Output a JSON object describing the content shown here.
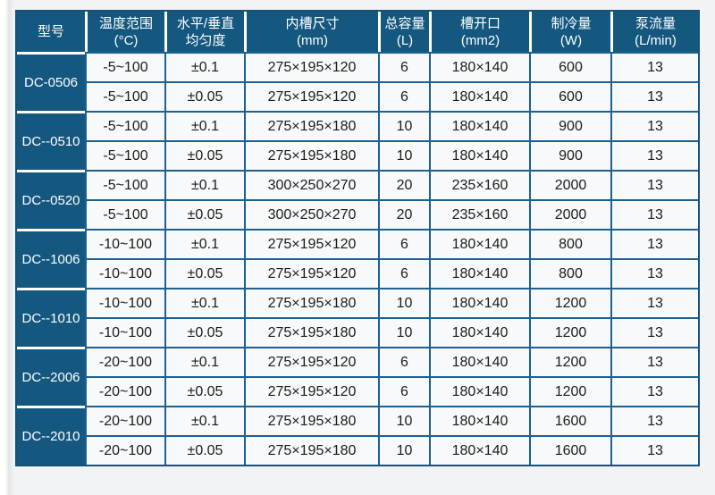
{
  "page": {
    "background_color": "#f2f3f4"
  },
  "table": {
    "accent_blue": "#14577f",
    "grid_line_blue": "#1e6092",
    "cell_background": "#f7f9fa",
    "header_text_color": "#ffffff",
    "data_text_color": "#1b1b1b",
    "columns": [
      {
        "id": "model",
        "label": "型号",
        "sub": ""
      },
      {
        "id": "temp_range",
        "label": "温度范围",
        "sub": "(°C)"
      },
      {
        "id": "uniformity",
        "label": "水平/垂直",
        "sub": "均匀度"
      },
      {
        "id": "tank_size",
        "label": "内槽尺寸",
        "sub": "(mm)"
      },
      {
        "id": "capacity",
        "label": "总容量",
        "sub": "(L)"
      },
      {
        "id": "opening",
        "label": "槽开口",
        "sub": "(mm2)"
      },
      {
        "id": "cooling",
        "label": "制冷量",
        "sub": "(W)"
      },
      {
        "id": "pump_flow",
        "label": "泵流量",
        "sub": "(L/min)"
      }
    ],
    "groups": [
      {
        "model": "DC-0506",
        "rows": [
          [
            "-5~100",
            "±0.1",
            "275×195×120",
            "6",
            "180×140",
            "600",
            "13"
          ],
          [
            "-5~100",
            "±0.05",
            "275×195×120",
            "6",
            "180×140",
            "600",
            "13"
          ]
        ]
      },
      {
        "model": "DC--0510",
        "rows": [
          [
            "-5~100",
            "±0.1",
            "275×195×180",
            "10",
            "180×140",
            "900",
            "13"
          ],
          [
            "-5~100",
            "±0.05",
            "275×195×180",
            "10",
            "180×140",
            "900",
            "13"
          ]
        ]
      },
      {
        "model": "DC--0520",
        "rows": [
          [
            "-5~100",
            "±0.1",
            "300×250×270",
            "20",
            "235×160",
            "2000",
            "13"
          ],
          [
            "-5~100",
            "±0.05",
            "300×250×270",
            "20",
            "235×160",
            "2000",
            "13"
          ]
        ]
      },
      {
        "model": "DC--1006",
        "rows": [
          [
            "-10~100",
            "±0.1",
            "275×195×120",
            "6",
            "180×140",
            "800",
            "13"
          ],
          [
            "-10~100",
            "±0.05",
            "275×195×120",
            "6",
            "180×140",
            "800",
            "13"
          ]
        ]
      },
      {
        "model": "DC--1010",
        "rows": [
          [
            "-10~100",
            "±0.1",
            "275×195×180",
            "10",
            "180×140",
            "1200",
            "13"
          ],
          [
            "-10~100",
            "±0.05",
            "275×195×180",
            "10",
            "180×140",
            "1200",
            "13"
          ]
        ]
      },
      {
        "model": "DC--2006",
        "rows": [
          [
            "-20~100",
            "±0.1",
            "275×195×120",
            "6",
            "180×140",
            "1200",
            "13"
          ],
          [
            "-20~100",
            "±0.05",
            "275×195×120",
            "6",
            "180×140",
            "1200",
            "13"
          ]
        ]
      },
      {
        "model": "DC--2010",
        "rows": [
          [
            "-20~100",
            "±0.1",
            "275×195×180",
            "10",
            "180×140",
            "1600",
            "13"
          ],
          [
            "-20~100",
            "±0.05",
            "275×195×180",
            "10",
            "180×140",
            "1600",
            "13"
          ]
        ]
      }
    ]
  }
}
